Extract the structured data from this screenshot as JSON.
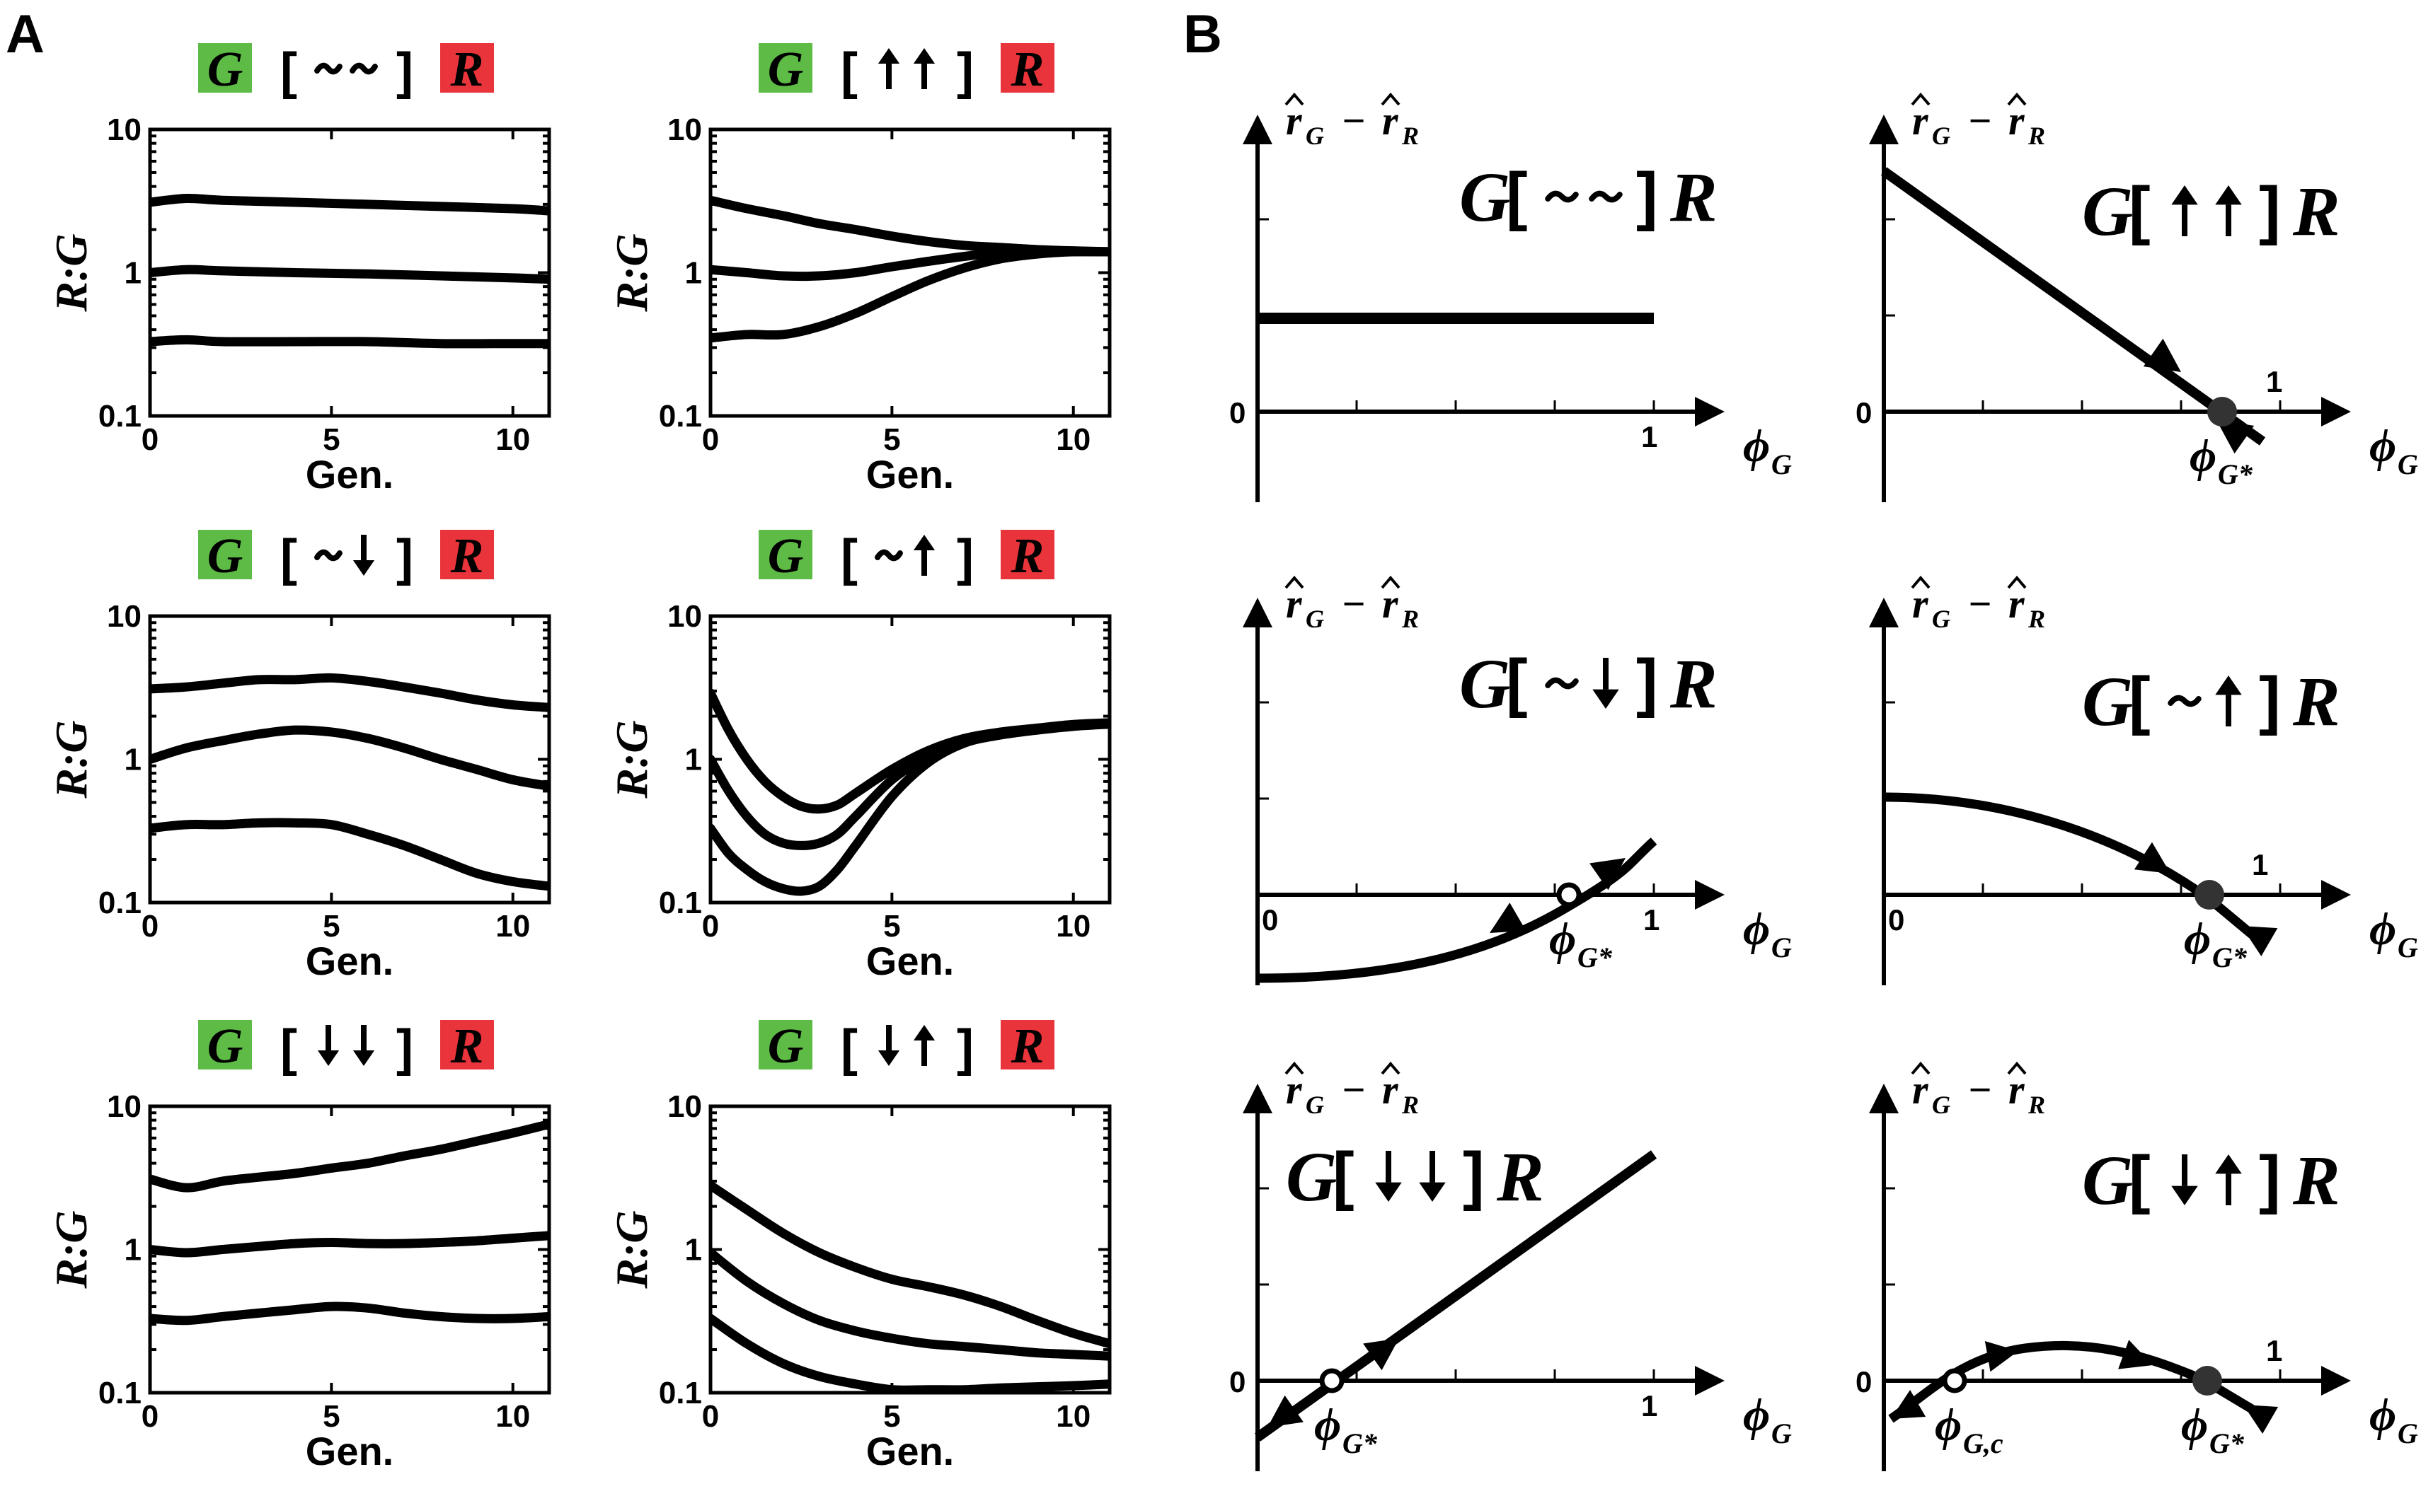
{
  "panel_labels": {
    "a": "A",
    "b": "B"
  },
  "colors": {
    "green_box": "#5dbb46",
    "red_box": "#e8343a",
    "line": "#000000",
    "stable_dot": "#333333"
  },
  "panel_a": {
    "ylabel": "R:G",
    "xlabel": "Gen.",
    "ytick_labels": [
      "10",
      "1",
      "0.1"
    ],
    "xtick_labels": [
      "0",
      "5",
      "10"
    ],
    "strain_left": "G",
    "strain_right": "R",
    "plots": [
      {
        "id": "nn",
        "bracket_open": "[",
        "bracket_close": "]",
        "inner": "~~",
        "arrows": [
          "tilde",
          "tilde"
        ]
      },
      {
        "id": "uu",
        "bracket_open": "[",
        "bracket_close": "]",
        "inner": "↑↑",
        "arrows": [
          "up",
          "up"
        ]
      },
      {
        "id": "nd",
        "bracket_open": "[",
        "bracket_close": "]",
        "inner": "~↓",
        "arrows": [
          "tilde",
          "down"
        ]
      },
      {
        "id": "nu",
        "bracket_open": "[",
        "bracket_close": "]",
        "inner": "~↑",
        "arrows": [
          "tilde",
          "up"
        ]
      },
      {
        "id": "dd",
        "bracket_open": "[",
        "bracket_close": "]",
        "inner": "↓↓",
        "arrows": [
          "down",
          "down"
        ]
      },
      {
        "id": "du",
        "bracket_open": "[",
        "bracket_close": "]",
        "inner": "↓↑",
        "arrows": [
          "down",
          "up"
        ]
      }
    ]
  },
  "panel_b": {
    "ylabel_main": "r",
    "ylabel_sub_g": "G",
    "ylabel_minus": "−",
    "ylabel_sub_r": "R",
    "xlabel_main": "ϕ",
    "xlabel_sub": "G",
    "zero_label": "0",
    "one_label": "1",
    "fixed_point_star": "G*",
    "fixed_point_c": "G,c",
    "plots": [
      {
        "id": "nn",
        "title_left": "G",
        "title_inner": "~~",
        "title_right": "R"
      },
      {
        "id": "uu",
        "title_left": "G",
        "title_inner": "↑↑",
        "title_right": "R"
      },
      {
        "id": "nd",
        "title_left": "G",
        "title_inner": "~↓",
        "title_right": "R"
      },
      {
        "id": "nu",
        "title_left": "G",
        "title_inner": "~↑",
        "title_right": "R"
      },
      {
        "id": "dd",
        "title_left": "G",
        "title_inner": "↓↓",
        "title_right": "R"
      },
      {
        "id": "du",
        "title_left": "G",
        "title_inner": "↓↑",
        "title_right": "R"
      }
    ]
  },
  "chart_data": [
    {
      "type": "line",
      "title": "G [~~] R",
      "xlabel": "Gen.",
      "ylabel": "R:G",
      "yscale": "log",
      "ylim": [
        0.1,
        10
      ],
      "xlim": [
        0,
        11
      ],
      "series": [
        {
          "x": [
            0,
            1,
            2,
            4,
            6,
            8,
            10,
            11
          ],
          "values": [
            3.1,
            3.3,
            3.2,
            3.1,
            3.0,
            2.9,
            2.8,
            2.7
          ]
        },
        {
          "x": [
            0,
            1,
            2,
            4,
            6,
            8,
            10,
            11
          ],
          "values": [
            1.0,
            1.05,
            1.03,
            1.0,
            0.98,
            0.95,
            0.92,
            0.9
          ]
        },
        {
          "x": [
            0,
            1,
            2,
            4,
            6,
            8,
            10,
            11
          ],
          "values": [
            0.33,
            0.34,
            0.33,
            0.33,
            0.33,
            0.32,
            0.32,
            0.32
          ]
        }
      ]
    },
    {
      "type": "line",
      "title": "G [↑↑] R",
      "xlabel": "Gen.",
      "ylabel": "R:G",
      "yscale": "log",
      "ylim": [
        0.1,
        10
      ],
      "xlim": [
        0,
        11
      ],
      "series": [
        {
          "x": [
            0,
            1,
            2,
            3,
            4,
            5,
            6,
            7,
            8,
            9,
            10,
            11
          ],
          "values": [
            3.2,
            2.8,
            2.5,
            2.2,
            2.0,
            1.8,
            1.65,
            1.55,
            1.5,
            1.45,
            1.42,
            1.4
          ]
        },
        {
          "x": [
            0,
            1,
            2,
            3,
            4,
            5,
            6,
            7,
            8,
            9,
            10,
            11
          ],
          "values": [
            1.05,
            1.0,
            0.95,
            0.95,
            1.0,
            1.1,
            1.2,
            1.3,
            1.38,
            1.4,
            1.4,
            1.4
          ]
        },
        {
          "x": [
            0,
            1,
            2,
            3,
            4,
            5,
            6,
            7,
            8,
            9,
            10,
            11
          ],
          "values": [
            0.35,
            0.37,
            0.37,
            0.42,
            0.52,
            0.68,
            0.88,
            1.08,
            1.25,
            1.35,
            1.4,
            1.4
          ]
        }
      ]
    },
    {
      "type": "line",
      "title": "G [~↓] R",
      "xlabel": "Gen.",
      "ylabel": "R:G",
      "yscale": "log",
      "ylim": [
        0.1,
        10
      ],
      "xlim": [
        0,
        11
      ],
      "series": [
        {
          "x": [
            0,
            1,
            2,
            3,
            4,
            5,
            6,
            7,
            8,
            9,
            10,
            11
          ],
          "values": [
            3.1,
            3.2,
            3.4,
            3.6,
            3.6,
            3.7,
            3.5,
            3.2,
            2.9,
            2.6,
            2.4,
            2.3
          ]
        },
        {
          "x": [
            0,
            1,
            2,
            3,
            4,
            5,
            6,
            7,
            8,
            9,
            10,
            11
          ],
          "values": [
            1.0,
            1.2,
            1.35,
            1.5,
            1.6,
            1.55,
            1.4,
            1.2,
            1.0,
            0.85,
            0.72,
            0.65
          ]
        },
        {
          "x": [
            0,
            1,
            2,
            3,
            4,
            5,
            6,
            7,
            8,
            9,
            10,
            11
          ],
          "values": [
            0.33,
            0.35,
            0.35,
            0.36,
            0.36,
            0.35,
            0.3,
            0.25,
            0.2,
            0.16,
            0.14,
            0.13
          ]
        }
      ]
    },
    {
      "type": "line",
      "title": "G [~↑] R",
      "xlabel": "Gen.",
      "ylabel": "R:G",
      "yscale": "log",
      "ylim": [
        0.1,
        10
      ],
      "xlim": [
        0,
        11
      ],
      "series": [
        {
          "x": [
            0,
            0.5,
            1,
            1.5,
            2,
            2.5,
            3,
            3.5,
            4,
            5,
            6,
            7,
            8,
            9,
            10,
            11
          ],
          "values": [
            2.9,
            1.6,
            1.0,
            0.7,
            0.55,
            0.47,
            0.45,
            0.48,
            0.58,
            0.85,
            1.15,
            1.4,
            1.55,
            1.65,
            1.75,
            1.8
          ]
        },
        {
          "x": [
            0,
            0.5,
            1,
            1.5,
            2,
            2.5,
            3,
            3.5,
            4,
            5,
            6,
            7,
            8,
            9,
            10,
            11
          ],
          "values": [
            1.0,
            0.6,
            0.4,
            0.3,
            0.26,
            0.25,
            0.26,
            0.3,
            0.4,
            0.72,
            1.05,
            1.35,
            1.5,
            1.62,
            1.72,
            1.78
          ]
        },
        {
          "x": [
            0,
            0.5,
            1,
            1.5,
            2,
            2.5,
            3,
            3.5,
            4,
            5,
            6,
            7,
            8,
            9,
            10,
            11
          ],
          "values": [
            0.33,
            0.22,
            0.17,
            0.14,
            0.125,
            0.12,
            0.13,
            0.17,
            0.25,
            0.55,
            0.95,
            1.3,
            1.48,
            1.6,
            1.7,
            1.76
          ]
        }
      ]
    },
    {
      "type": "line",
      "title": "G [↓↓] R",
      "xlabel": "Gen.",
      "ylabel": "R:G",
      "yscale": "log",
      "ylim": [
        0.1,
        10
      ],
      "xlim": [
        0,
        11
      ],
      "series": [
        {
          "x": [
            0,
            1,
            2,
            3,
            4,
            5,
            6,
            7,
            8,
            9,
            10,
            11
          ],
          "values": [
            3.1,
            2.7,
            3.0,
            3.2,
            3.4,
            3.7,
            4.0,
            4.5,
            5.0,
            5.7,
            6.5,
            7.5
          ]
        },
        {
          "x": [
            0,
            1,
            2,
            3,
            4,
            5,
            6,
            7,
            8,
            9,
            10,
            11
          ],
          "values": [
            1.0,
            0.95,
            1.0,
            1.05,
            1.1,
            1.12,
            1.1,
            1.1,
            1.12,
            1.15,
            1.2,
            1.25
          ]
        },
        {
          "x": [
            0,
            1,
            2,
            3,
            4,
            5,
            6,
            7,
            8,
            9,
            10,
            11
          ],
          "values": [
            0.33,
            0.32,
            0.34,
            0.36,
            0.38,
            0.4,
            0.39,
            0.36,
            0.34,
            0.33,
            0.33,
            0.34
          ]
        }
      ]
    },
    {
      "type": "line",
      "title": "G [↓↑] R",
      "xlabel": "Gen.",
      "ylabel": "R:G",
      "yscale": "log",
      "ylim": [
        0.1,
        10
      ],
      "xlim": [
        0,
        11
      ],
      "series": [
        {
          "x": [
            0,
            1,
            2,
            3,
            4,
            5,
            6,
            7,
            8,
            9,
            10,
            11
          ],
          "values": [
            2.8,
            1.9,
            1.3,
            0.95,
            0.75,
            0.62,
            0.55,
            0.48,
            0.4,
            0.32,
            0.26,
            0.22
          ]
        },
        {
          "x": [
            0,
            1,
            2,
            3,
            4,
            5,
            6,
            7,
            8,
            9,
            10,
            11
          ],
          "values": [
            0.95,
            0.6,
            0.42,
            0.32,
            0.27,
            0.24,
            0.22,
            0.21,
            0.2,
            0.19,
            0.185,
            0.18
          ]
        },
        {
          "x": [
            0,
            1,
            2,
            3,
            4,
            5,
            6,
            7,
            8,
            9,
            10,
            11
          ],
          "values": [
            0.33,
            0.22,
            0.16,
            0.13,
            0.115,
            0.105,
            0.105,
            0.105,
            0.108,
            0.11,
            0.112,
            0.115
          ]
        }
      ]
    }
  ]
}
